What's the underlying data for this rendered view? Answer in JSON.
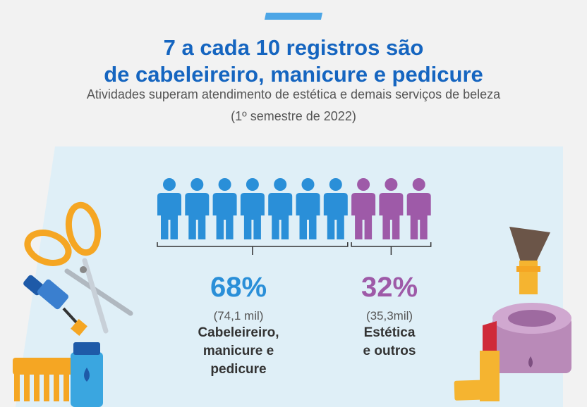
{
  "header": {
    "title_line1": "7 a cada 10 registros são",
    "title_line2": "de cabeleireiro, manicure e pedicure",
    "subtitle_line1": "Atividades superam atendimento de estética e demais serviços de beleza",
    "subtitle_line2": "(1º semestre de 2022)"
  },
  "chart_data": {
    "type": "pictogram",
    "total_icons": 10,
    "series": [
      {
        "name": "Cabeleireiro, manicure e pedicure",
        "percent_label": "68%",
        "value": 68,
        "amount": "(74,1 mil)",
        "label_line1": "Cabeleireiro,",
        "label_line2": "manicure e pedicure",
        "icons": 7,
        "color": "#2a8fd8"
      },
      {
        "name": "Estética e outros",
        "percent_label": "32%",
        "value": 32,
        "amount": "(35,3mil)",
        "label_line1": "Estética",
        "label_line2": "e outros",
        "icons": 3,
        "color": "#9e5aa8"
      }
    ]
  },
  "colors": {
    "title": "#1565c0",
    "accent": "#4da6e6",
    "panel": "#dfeff7",
    "blue": "#2a8fd8",
    "purple": "#9e5aa8"
  },
  "icons": [
    "scissors-icon",
    "nail-polish-icon",
    "comb-icon",
    "spray-bottle-icon",
    "makeup-brush-icon",
    "cream-jar-icon",
    "lipstick-icon",
    "person-icon"
  ]
}
